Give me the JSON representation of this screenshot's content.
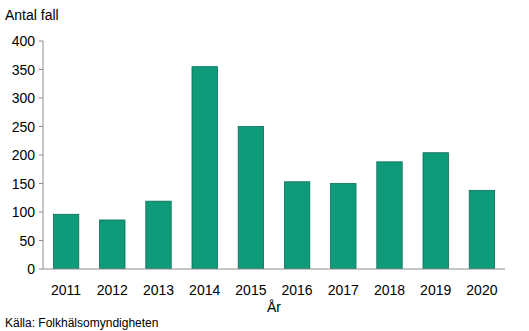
{
  "chart_data": {
    "type": "bar",
    "y_label": "Antal fall",
    "x_label": "År",
    "annotations": [
      "Källa: Folkhälsomyndigheten"
    ],
    "categories": [
      "2011",
      "2012",
      "2013",
      "2014",
      "2015",
      "2016",
      "2017",
      "2018",
      "2019",
      "2020"
    ],
    "values": [
      96,
      86,
      119,
      355,
      250,
      153,
      150,
      188,
      204,
      138
    ],
    "color": "#0f9b7a",
    "ylim": [
      0,
      400
    ],
    "yticks": [
      0,
      50,
      100,
      150,
      200,
      250,
      300,
      350,
      400
    ],
    "grid": false
  }
}
